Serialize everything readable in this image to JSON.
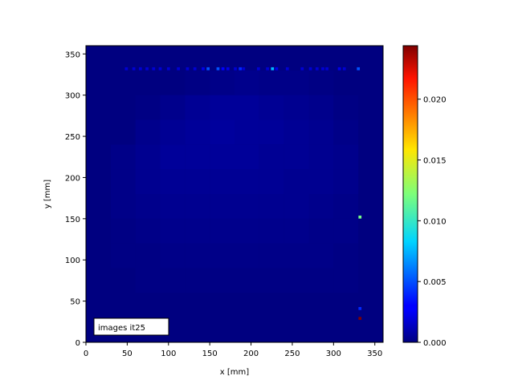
{
  "chart_data": {
    "type": "heatmap",
    "xlabel": "x [mm]",
    "ylabel": "y [mm]",
    "xlim": [
      0,
      360
    ],
    "ylim": [
      0,
      360
    ],
    "xticks": [
      "0",
      "50",
      "100",
      "150",
      "200",
      "250",
      "300",
      "350"
    ],
    "yticks": [
      "0",
      "50",
      "100",
      "150",
      "200",
      "250",
      "300",
      "350"
    ],
    "colormap": "jet",
    "colorbar": {
      "range": [
        0,
        0.0244
      ],
      "ticks": [
        "0.000",
        "0.005",
        "0.010",
        "0.015",
        "0.020"
      ]
    },
    "annotation": "images it25",
    "pixel_size_mm": 3.6,
    "background_grid": {
      "cell_mm": 30,
      "rows_top_to_bottom": [
        [
          0,
          0,
          0,
          0,
          0,
          0,
          0,
          0,
          0,
          0,
          0,
          0
        ],
        [
          0,
          0,
          0,
          0,
          0.0001,
          0.0002,
          0.0003,
          0.0002,
          0.0002,
          0.0001,
          0,
          0
        ],
        [
          0,
          0,
          0.0001,
          0.0003,
          0.0005,
          0.0006,
          0.0006,
          0.0005,
          0.0004,
          0.0003,
          0.0001,
          0
        ],
        [
          0,
          0,
          0.0003,
          0.0005,
          0.0006,
          0.0007,
          0.0006,
          0.0006,
          0.0005,
          0.0004,
          0.0002,
          0
        ],
        [
          0,
          0.0002,
          0.0004,
          0.0006,
          0.0006,
          0.0006,
          0.0006,
          0.0005,
          0.0005,
          0.0004,
          0.0003,
          0
        ],
        [
          0,
          0.0002,
          0.0004,
          0.0005,
          0.0005,
          0.0005,
          0.0005,
          0.0005,
          0.0004,
          0.0004,
          0.0003,
          0
        ],
        [
          0,
          0.0002,
          0.0003,
          0.0004,
          0.0004,
          0.0004,
          0.0004,
          0.0004,
          0.0004,
          0.0003,
          0.0002,
          0
        ],
        [
          0,
          0.0001,
          0.0002,
          0.0003,
          0.0003,
          0.0003,
          0.0003,
          0.0003,
          0.0003,
          0.0002,
          0.0002,
          0
        ],
        [
          0,
          0.0001,
          0.0001,
          0.0002,
          0.0002,
          0.0002,
          0.0002,
          0.0002,
          0.0002,
          0.0002,
          0.0001,
          0
        ],
        [
          0,
          0,
          0.0001,
          0.0001,
          0.0001,
          0.0001,
          0.0001,
          0.0001,
          0.0001,
          0.0001,
          0.0001,
          0
        ],
        [
          0,
          0,
          0,
          0,
          0,
          0,
          0,
          0,
          0,
          0,
          0,
          0
        ],
        [
          0,
          0,
          0,
          0,
          0,
          0,
          0,
          0,
          0,
          0,
          0,
          0
        ]
      ]
    },
    "hot_pixels": [
      {
        "x": 49,
        "y": 332,
        "v": 0.002
      },
      {
        "x": 58,
        "y": 332,
        "v": 0.002
      },
      {
        "x": 66,
        "y": 332,
        "v": 0.002
      },
      {
        "x": 74,
        "y": 332,
        "v": 0.002
      },
      {
        "x": 82,
        "y": 332,
        "v": 0.002
      },
      {
        "x": 90,
        "y": 332,
        "v": 0.002
      },
      {
        "x": 100,
        "y": 332,
        "v": 0.002
      },
      {
        "x": 112,
        "y": 332,
        "v": 0.002
      },
      {
        "x": 123,
        "y": 332,
        "v": 0.002
      },
      {
        "x": 132,
        "y": 332,
        "v": 0.002
      },
      {
        "x": 142,
        "y": 332,
        "v": 0.0025
      },
      {
        "x": 148,
        "y": 332,
        "v": 0.005
      },
      {
        "x": 160,
        "y": 332,
        "v": 0.005
      },
      {
        "x": 166,
        "y": 332,
        "v": 0.003
      },
      {
        "x": 172,
        "y": 332,
        "v": 0.0025
      },
      {
        "x": 181,
        "y": 332,
        "v": 0.002
      },
      {
        "x": 187,
        "y": 332,
        "v": 0.004
      },
      {
        "x": 191,
        "y": 332,
        "v": 0.002
      },
      {
        "x": 209,
        "y": 332,
        "v": 0.002
      },
      {
        "x": 220,
        "y": 332,
        "v": 0.002
      },
      {
        "x": 226,
        "y": 332,
        "v": 0.0075
      },
      {
        "x": 231,
        "y": 332,
        "v": 0.0025
      },
      {
        "x": 244,
        "y": 332,
        "v": 0.002
      },
      {
        "x": 262,
        "y": 332,
        "v": 0.002
      },
      {
        "x": 272,
        "y": 332,
        "v": 0.002
      },
      {
        "x": 280,
        "y": 332,
        "v": 0.002
      },
      {
        "x": 287,
        "y": 332,
        "v": 0.002
      },
      {
        "x": 292,
        "y": 332,
        "v": 0.002
      },
      {
        "x": 307,
        "y": 332,
        "v": 0.0025
      },
      {
        "x": 313,
        "y": 332,
        "v": 0.002
      },
      {
        "x": 330,
        "y": 332,
        "v": 0.005
      },
      {
        "x": 332,
        "y": 152,
        "v": 0.012
      },
      {
        "x": 332,
        "y": 41,
        "v": 0.004
      },
      {
        "x": 332,
        "y": 29,
        "v": 0.0244
      }
    ]
  }
}
